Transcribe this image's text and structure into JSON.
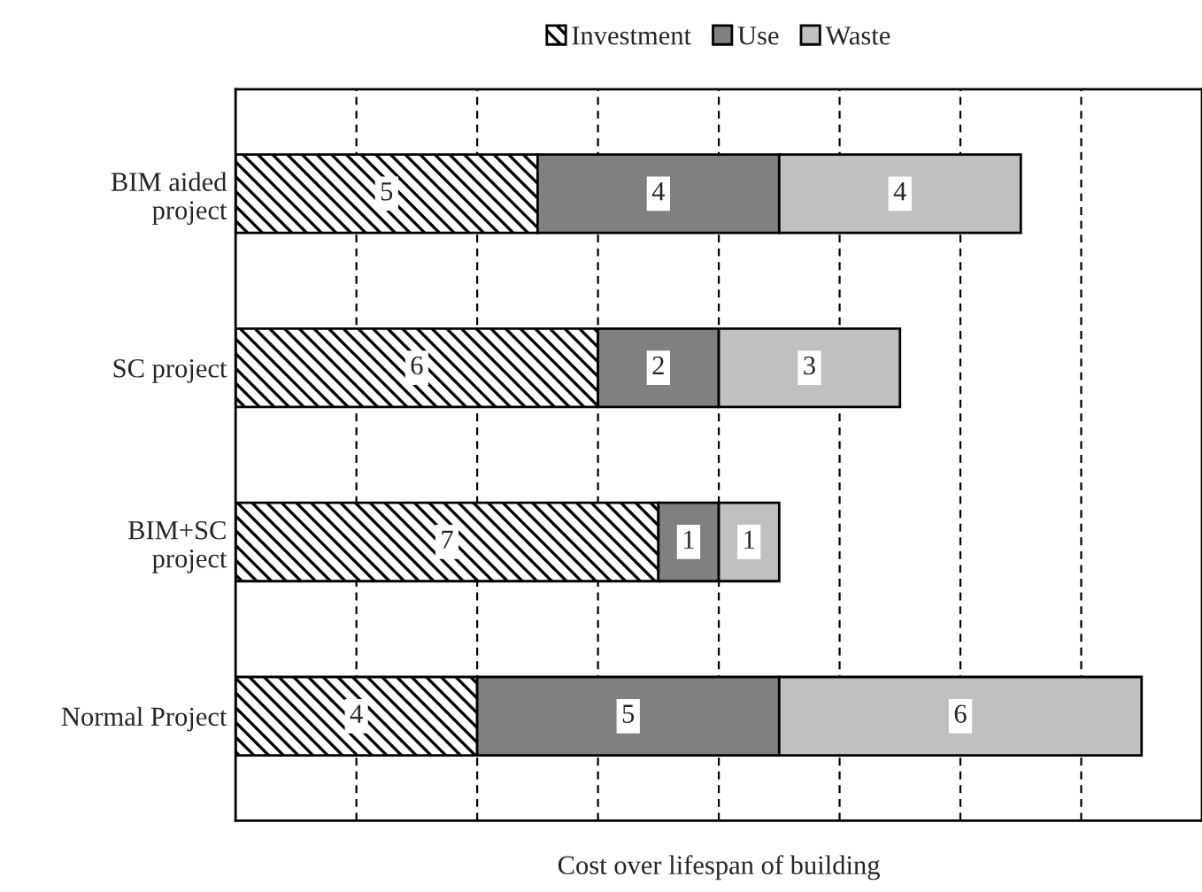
{
  "chart_data": {
    "type": "bar",
    "orientation": "horizontal",
    "stacked": true,
    "xlabel": "Cost over lifespan of building",
    "categories": [
      "BIM aided\nproject",
      "SC project",
      "BIM+SC\nproject",
      "Normal Project"
    ],
    "series": [
      {
        "name": "Investment",
        "color": "#000000",
        "values": [
          5,
          6,
          7,
          4
        ]
      },
      {
        "name": "Use",
        "color": "#808080",
        "values": [
          4,
          2,
          1,
          5
        ]
      },
      {
        "name": "Waste",
        "color": "#c0c0c0",
        "values": [
          4,
          3,
          1,
          6
        ]
      }
    ],
    "xlim": [
      0,
      16
    ],
    "xticks": [
      {
        "value": 2,
        "label": null
      },
      {
        "value": 4,
        "label": null
      },
      {
        "value": 6,
        "label": null
      },
      {
        "value": 8,
        "label": null
      },
      {
        "value": 10,
        "label": null
      },
      {
        "value": 12,
        "label": null
      },
      {
        "value": 14,
        "label": null
      }
    ],
    "tick_labels": "y",
    "grid": "x",
    "legend": "top",
    "data_labels": true
  }
}
